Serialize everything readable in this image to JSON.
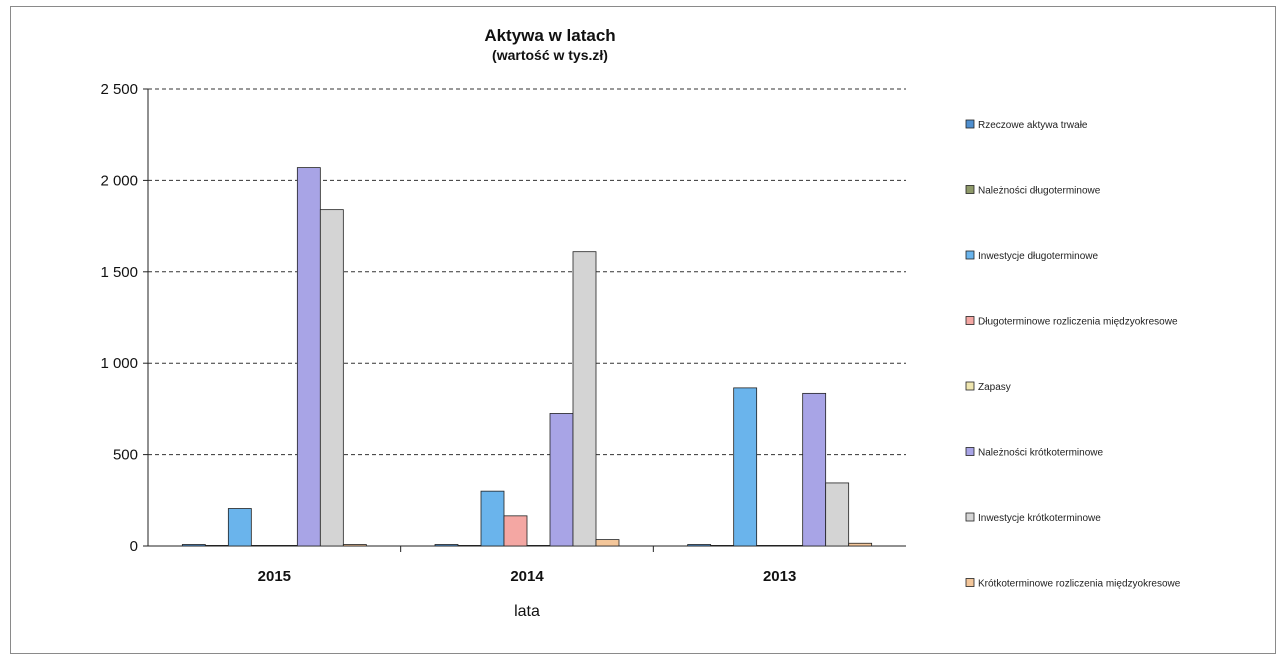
{
  "chart_data": {
    "type": "bar",
    "title": "Aktywa w latach",
    "subtitle": "(wartość w tys.zł)",
    "xlabel": "lata",
    "ylabel": "",
    "categories": [
      "2015",
      "2014",
      "2013"
    ],
    "ylim": [
      0,
      2500
    ],
    "yticks": [
      0,
      500,
      1000,
      1500,
      2000,
      2500
    ],
    "ytick_labels": [
      "0",
      "500",
      "1 000",
      "1 500",
      "2 000",
      "2 500"
    ],
    "grid": true,
    "legend_position": "right",
    "series": [
      {
        "name": "Rzeczowe aktywa trwałe",
        "color": "#4f8fcf",
        "values": [
          5,
          3,
          2
        ]
      },
      {
        "name": "Należności długoterminowe",
        "color": "#8f9a6a",
        "values": [
          0,
          0,
          0
        ]
      },
      {
        "name": "Inwestycje długoterminowe",
        "color": "#6ab4ec",
        "values": [
          205,
          300,
          865
        ]
      },
      {
        "name": "Długoterminowe rozliczenia międzyokresowe",
        "color": "#f4a7a3",
        "values": [
          0,
          165,
          0
        ]
      },
      {
        "name": "Zapasy",
        "color": "#efe6b0",
        "values": [
          0,
          0,
          0
        ]
      },
      {
        "name": "Należności krótkoterminowe",
        "color": "#a8a4e6",
        "values": [
          2070,
          725,
          835
        ]
      },
      {
        "name": "Inwestycje krótkoterminowe",
        "color": "#d4d4d4",
        "values": [
          1840,
          1610,
          345
        ]
      },
      {
        "name": "Krótkoterminowe rozliczenia międzyokresowe",
        "color": "#f3c69a",
        "values": [
          5,
          35,
          15
        ]
      }
    ]
  }
}
